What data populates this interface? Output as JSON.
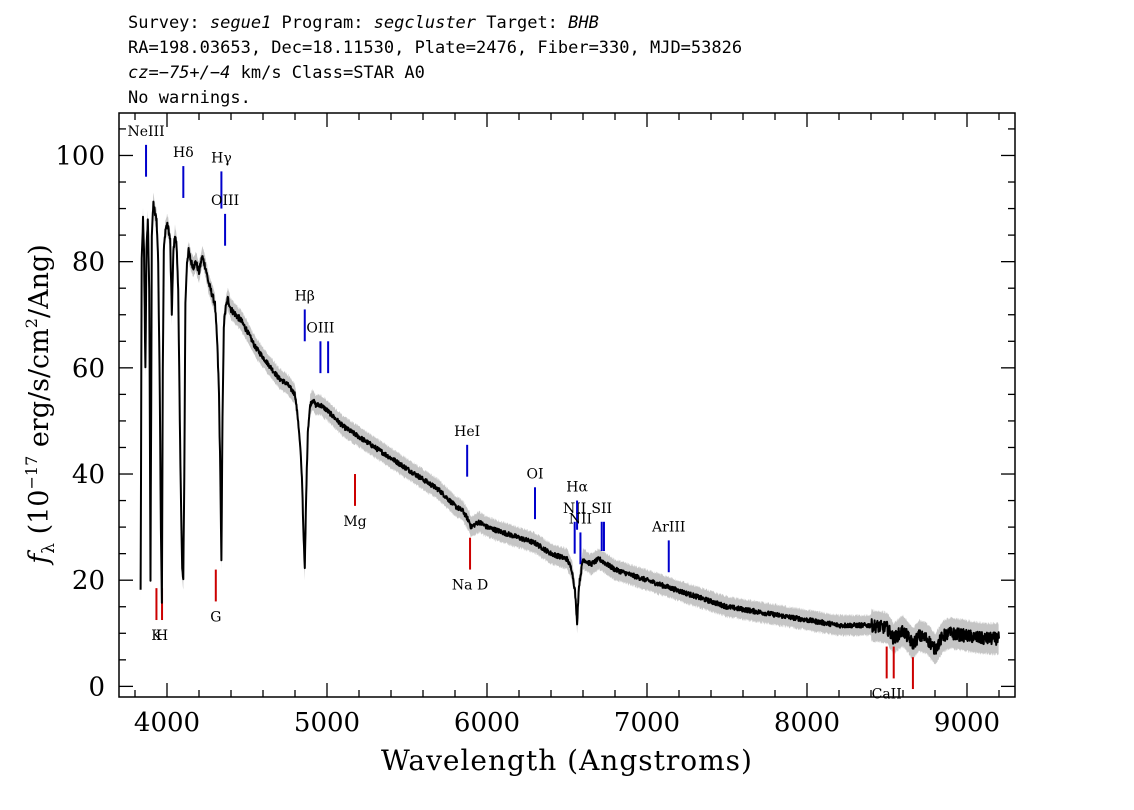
{
  "header": {
    "line1": {
      "survey_label": "Survey: ",
      "survey": "segue1",
      "program_label": " Program: ",
      "program": "segcluster",
      "target_label": " Target: ",
      "target": "BHB"
    },
    "line2": "RA=198.03653, Dec=18.11530, Plate=2476, Fiber=330, MJD=53826",
    "line3": {
      "cz_label": "cz",
      "cz_value": "=−75+/−4",
      "rest": " km/s Class=STAR A0"
    },
    "line4": "No warnings."
  },
  "chart_data": {
    "type": "line",
    "xlabel": "Wavelength (Angstroms)",
    "ylabel": "f_λ (10^-17 erg/s/cm^2/Ang)",
    "xlim": [
      3700,
      9300
    ],
    "ylim": [
      -2,
      108
    ],
    "x_ticks": [
      4000,
      5000,
      6000,
      7000,
      8000,
      9000
    ],
    "y_ticks": [
      0,
      20,
      40,
      60,
      80,
      100
    ],
    "colors": {
      "spectrum": "#000000",
      "error": "#bbbbbb",
      "emission": "#0000cc",
      "absorption": "#cc0000"
    },
    "series": [
      {
        "x": [
          3835,
          3842,
          3850,
          3856,
          3865,
          3872,
          3880,
          3889,
          3897,
          3905,
          3915,
          3925,
          3935,
          3945,
          3955,
          3962,
          3968,
          3974,
          3980,
          3990,
          4000,
          4010,
          4020,
          4030,
          4040,
          4050,
          4060,
          4070,
          4080,
          4090,
          4095,
          4102,
          4108,
          4115,
          4125,
          4135,
          4150,
          4165,
          4180,
          4200,
          4220,
          4240,
          4260,
          4280,
          4300,
          4315,
          4325,
          4333,
          4340,
          4347,
          4355,
          4365,
          4380,
          4400,
          4430,
          4460,
          4500,
          4550,
          4600,
          4650,
          4700,
          4750,
          4800,
          4820,
          4835,
          4845,
          4852,
          4861,
          4870,
          4880,
          4895,
          4910,
          4930,
          4960,
          5000,
          5100,
          5200,
          5300,
          5400,
          5500,
          5600,
          5700,
          5800,
          5850,
          5890,
          5900,
          5950,
          6000,
          6100,
          6200,
          6300,
          6400,
          6500,
          6530,
          6550,
          6563,
          6575,
          6600,
          6650,
          6700,
          6800,
          6900,
          7000,
          7100,
          7200,
          7300,
          7400,
          7500,
          7600,
          7700,
          7800,
          7900,
          8000,
          8100,
          8200,
          8300,
          8400,
          8500,
          8542,
          8600,
          8662,
          8700,
          8750,
          8800,
          8850,
          8900,
          9000,
          9100,
          9200
        ],
        "y": [
          18,
          80,
          88,
          82,
          60,
          82,
          88,
          75,
          20,
          85,
          91,
          89,
          88,
          80,
          55,
          30,
          16,
          60,
          82,
          86,
          87,
          86,
          84,
          70,
          82,
          85,
          83,
          75,
          50,
          30,
          22,
          20,
          40,
          72,
          80,
          82,
          80,
          79,
          80,
          78,
          81,
          79,
          76,
          74,
          72,
          64,
          55,
          40,
          24,
          50,
          68,
          71,
          73,
          71,
          70,
          69,
          67,
          64,
          62,
          60,
          58,
          57,
          55,
          50,
          44,
          38,
          30,
          22,
          36,
          48,
          53,
          54,
          53,
          53,
          52,
          49,
          47,
          45,
          43,
          41,
          39,
          37,
          34,
          33,
          31,
          30,
          31,
          30,
          29,
          28,
          27,
          25,
          24,
          22,
          18,
          12,
          19,
          24,
          23,
          24,
          22,
          21,
          20,
          19,
          18,
          17,
          16,
          15,
          14.5,
          14,
          13.5,
          13,
          12.5,
          12,
          11.5,
          11.5,
          11.5,
          11,
          9,
          10.5,
          8,
          9.5,
          9,
          7,
          9.5,
          10,
          9.5,
          9,
          9
        ]
      }
    ],
    "emission_lines": [
      {
        "label": "NeIII",
        "x": 3869,
        "y1": 96,
        "y2": 102
      },
      {
        "label": "Hδ",
        "x": 4102,
        "y1": 92,
        "y2": 98
      },
      {
        "label": "Hγ",
        "x": 4340,
        "y1": 90,
        "y2": 97
      },
      {
        "label": "OIII",
        "x": 4363,
        "y1": 83,
        "y2": 89
      },
      {
        "label": "Hβ",
        "x": 4861,
        "y1": 65,
        "y2": 71
      },
      {
        "label": "OIII",
        "x": 4959,
        "y1": 59,
        "y2": 65
      },
      {
        "label": "",
        "x": 5007,
        "y1": 59,
        "y2": 65
      },
      {
        "label": "HeI",
        "x": 5876,
        "y1": 39.5,
        "y2": 45.5
      },
      {
        "label": "OI",
        "x": 6300,
        "y1": 31.5,
        "y2": 37.5
      },
      {
        "label": "NII",
        "x": 6548,
        "y1": 25,
        "y2": 31
      },
      {
        "label": "Hα",
        "x": 6563,
        "y1": 29.5,
        "y2": 35
      },
      {
        "label": "NII",
        "x": 6584,
        "y1": 23,
        "y2": 29
      },
      {
        "label": "SII",
        "x": 6717,
        "y1": 25.5,
        "y2": 31
      },
      {
        "label": "",
        "x": 6731,
        "y1": 25.5,
        "y2": 31
      },
      {
        "label": "ArIII",
        "x": 7136,
        "y1": 21.5,
        "y2": 27.5
      }
    ],
    "absorption_lines": [
      {
        "label": "K",
        "x": 3934,
        "y1": 12.5,
        "y2": 18.5
      },
      {
        "label": "H",
        "x": 3969,
        "y1": 12.5,
        "y2": 18.5
      },
      {
        "label": "G",
        "x": 4305,
        "y1": 16,
        "y2": 22
      },
      {
        "label": "Mg",
        "x": 5175,
        "y1": 34,
        "y2": 40
      },
      {
        "label": "Na D",
        "x": 5894,
        "y1": 22,
        "y2": 28
      },
      {
        "label": "CaII",
        "x": 8498,
        "y1": 1.5,
        "y2": 7.5
      },
      {
        "label": "",
        "x": 8542,
        "y1": 1.5,
        "y2": 7.5
      },
      {
        "label": "",
        "x": 8662,
        "y1": -0.5,
        "y2": 5.5
      }
    ]
  }
}
